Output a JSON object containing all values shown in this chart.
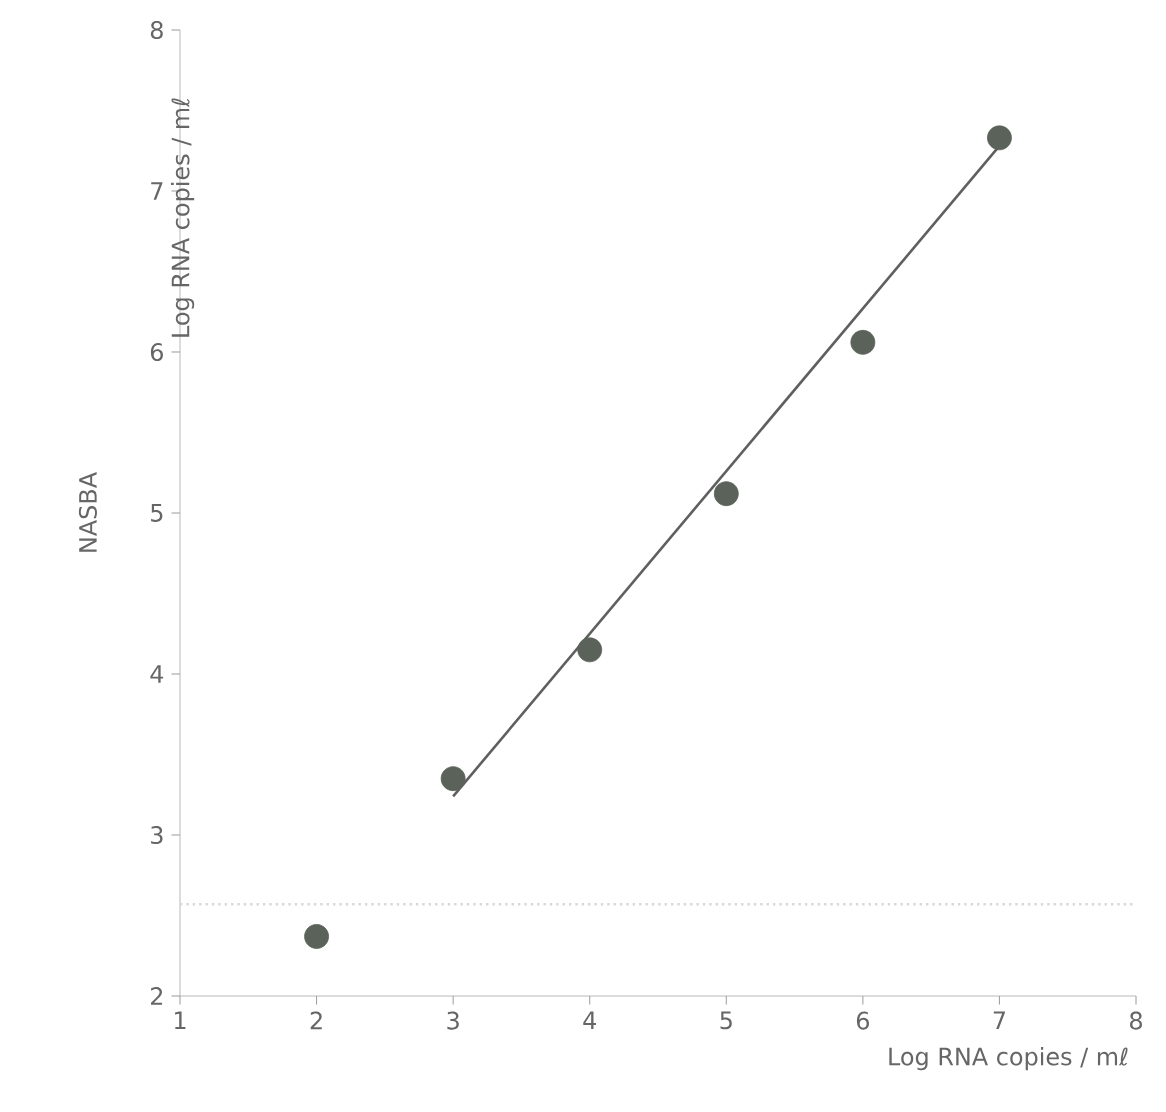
{
  "chart_data": {
    "type": "scatter",
    "xlabel": "Log RNA copies / mℓ",
    "ylabel": "NASBA",
    "annotations": [
      "Log RNA copies / mℓ"
    ],
    "xlim": [
      1,
      8
    ],
    "ylim": [
      2,
      8
    ],
    "xticks": [
      1,
      2,
      3,
      4,
      5,
      6,
      7,
      8
    ],
    "yticks": [
      2,
      3,
      4,
      5,
      6,
      7,
      8
    ],
    "marker": "circle",
    "grid": false,
    "ref_lines": [
      {
        "axis": "y",
        "value": 2.57,
        "color": "#d8d8d8",
        "line_style": "dotted"
      }
    ],
    "series": [
      {
        "color": "#5b6259",
        "x": [
          2,
          3,
          4,
          5,
          6,
          7
        ],
        "values": [
          2.37,
          3.35,
          4.15,
          5.12,
          6.06,
          7.33
        ]
      },
      {
        "type": "line",
        "color": "#5f5f5f",
        "marker": "none",
        "line_style": "solid",
        "x": [
          3,
          7
        ],
        "values": [
          3.24,
          7.28
        ]
      }
    ]
  }
}
